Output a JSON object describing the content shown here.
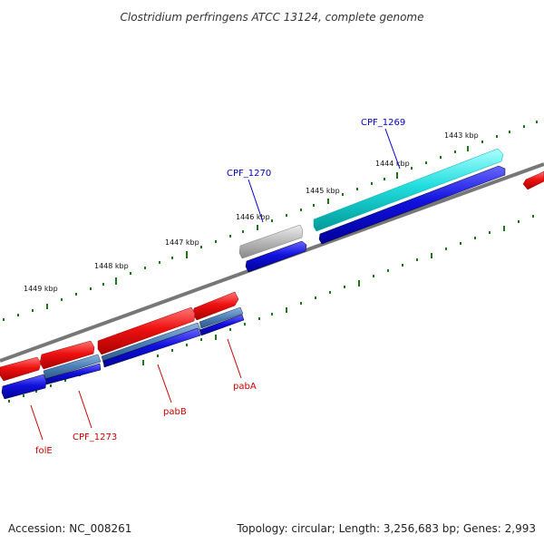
{
  "title": "Clostridium perfringens ATCC 13124, complete genome",
  "footer": {
    "accession": "Accession: NC_008261",
    "summary": "Topology: circular; Length: 3,256,683 bp; Genes: 2,993"
  },
  "colors": {
    "backbone": "#777777",
    "tick": "#1a7a1a",
    "forward_gene": "#ee1111",
    "reverse_gene": "#1111dd",
    "highlight_gene": "#22dddd",
    "pseudo_gene": "#b8b8b8",
    "rna_gene": "#4a7fb5",
    "label_forward": "#cc0000",
    "label_reverse": "#0000cc"
  },
  "ticks": [
    {
      "kbp": 1443,
      "label": "1443 kbp"
    },
    {
      "kbp": 1444,
      "label": "1444 kbp"
    },
    {
      "kbp": 1445,
      "label": "1445 kbp"
    },
    {
      "kbp": 1446,
      "label": "1446 kbp"
    },
    {
      "kbp": 1447,
      "label": "1447 kbp"
    },
    {
      "kbp": 1448,
      "label": "1448 kbp"
    },
    {
      "kbp": 1449,
      "label": "1449 kbp"
    }
  ],
  "genes": [
    {
      "id": "CPF_1269",
      "label": "CPF_1269",
      "type": "highlight",
      "label_color": "reverse"
    },
    {
      "id": "CPF_1270",
      "label": "CPF_1270",
      "type": "pseudo",
      "label_color": "reverse"
    },
    {
      "id": "pabA",
      "label": "pabA",
      "type": "forward",
      "label_color": "forward"
    },
    {
      "id": "pabB",
      "label": "pabB",
      "type": "forward",
      "label_color": "forward"
    },
    {
      "id": "CPF_1273",
      "label": "CPF_1273",
      "type": "rna",
      "label_color": "forward"
    },
    {
      "id": "folE",
      "label": "folE",
      "type": "forward",
      "label_color": "forward"
    }
  ]
}
